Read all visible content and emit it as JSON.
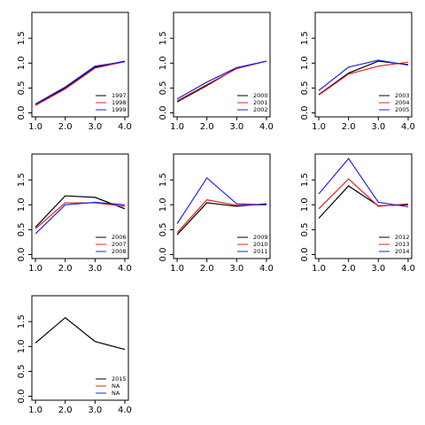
{
  "chart_data": [
    {
      "type": "line",
      "x": [
        1,
        2,
        3,
        4
      ],
      "xlim": [
        0.88,
        4.12
      ],
      "ylim": [
        -0.08,
        2.02
      ],
      "xticks": [
        {
          "value": 1,
          "label": "1.0"
        },
        {
          "value": 2,
          "label": "2.0"
        },
        {
          "value": 3,
          "label": "3.0"
        },
        {
          "value": 4,
          "label": "4.0"
        }
      ],
      "yticks": [
        {
          "value": 0,
          "label": "0.0"
        },
        0.5,
        {
          "value": 1,
          "label": "1.0"
        },
        1.5
      ],
      "legend": "bottomright",
      "series": [
        {
          "name": "1997",
          "color": "#000000",
          "values": [
            0.17,
            0.5,
            0.92,
            1.04
          ]
        },
        {
          "name": "1998",
          "color": "#df2020",
          "values": [
            0.15,
            0.48,
            0.9,
            1.03
          ]
        },
        {
          "name": "1999",
          "color": "#2020ee",
          "values": [
            0.18,
            0.52,
            0.94,
            1.03
          ]
        }
      ]
    },
    {
      "type": "line",
      "x": [
        1,
        2,
        3,
        4
      ],
      "xlim": [
        0.88,
        4.12
      ],
      "ylim": [
        -0.08,
        2.02
      ],
      "xticks": [
        {
          "value": 1,
          "label": "1.0"
        },
        {
          "value": 2,
          "label": "2.0"
        },
        {
          "value": 3,
          "label": "3.0"
        },
        {
          "value": 4,
          "label": "4.0"
        }
      ],
      "yticks": [
        {
          "value": 0,
          "label": "0.0"
        },
        0.5,
        {
          "value": 1,
          "label": "1.0"
        },
        1.5
      ],
      "legend": "bottomright",
      "series": [
        {
          "name": "2000",
          "color": "#000000",
          "values": [
            0.22,
            0.55,
            0.9,
            1.04
          ]
        },
        {
          "name": "2001",
          "color": "#df2020",
          "values": [
            0.24,
            0.57,
            0.89,
            1.04
          ]
        },
        {
          "name": "2002",
          "color": "#2020ee",
          "values": [
            0.28,
            0.62,
            0.91,
            1.04
          ]
        }
      ]
    },
    {
      "type": "line",
      "x": [
        1,
        2,
        3,
        4
      ],
      "xlim": [
        0.88,
        4.12
      ],
      "ylim": [
        -0.08,
        2.02
      ],
      "xticks": [
        {
          "value": 1,
          "label": "1.0"
        },
        {
          "value": 2,
          "label": "2.0"
        },
        {
          "value": 3,
          "label": "3.0"
        },
        {
          "value": 4,
          "label": "4.0"
        }
      ],
      "yticks": [
        {
          "value": 0,
          "label": "0.0"
        },
        0.5,
        {
          "value": 1,
          "label": "1.0"
        },
        1.5
      ],
      "legend": "bottomright",
      "series": [
        {
          "name": "2003",
          "color": "#000000",
          "values": [
            0.37,
            0.8,
            1.04,
            0.97
          ]
        },
        {
          "name": "2004",
          "color": "#df2020",
          "values": [
            0.36,
            0.78,
            0.94,
            1.02
          ]
        },
        {
          "name": "2005",
          "color": "#2020ee",
          "values": [
            0.45,
            0.92,
            1.06,
            0.96
          ]
        }
      ]
    },
    {
      "type": "line",
      "x": [
        1,
        2,
        3,
        4
      ],
      "xlim": [
        0.88,
        4.12
      ],
      "ylim": [
        -0.08,
        2.02
      ],
      "xticks": [
        {
          "value": 1,
          "label": "1.0"
        },
        {
          "value": 2,
          "label": "2.0"
        },
        {
          "value": 3,
          "label": "3.0"
        },
        {
          "value": 4,
          "label": "4.0"
        }
      ],
      "yticks": [
        {
          "value": 0,
          "label": "0.0"
        },
        0.5,
        {
          "value": 1,
          "label": "1.0"
        },
        1.5
      ],
      "legend": "bottomright",
      "series": [
        {
          "name": "2006",
          "color": "#000000",
          "values": [
            0.55,
            1.18,
            1.15,
            0.92
          ]
        },
        {
          "name": "2007",
          "color": "#df2020",
          "values": [
            0.52,
            1.04,
            1.04,
            0.97
          ]
        },
        {
          "name": "2008",
          "color": "#2020ee",
          "values": [
            0.42,
            1.0,
            1.05,
            1.0
          ]
        }
      ]
    },
    {
      "type": "line",
      "x": [
        1,
        2,
        3,
        4
      ],
      "xlim": [
        0.88,
        4.12
      ],
      "ylim": [
        -0.08,
        2.02
      ],
      "xticks": [
        {
          "value": 1,
          "label": "1.0"
        },
        {
          "value": 2,
          "label": "2.0"
        },
        {
          "value": 3,
          "label": "3.0"
        },
        {
          "value": 4,
          "label": "4.0"
        }
      ],
      "yticks": [
        {
          "value": 0,
          "label": "0.0"
        },
        0.5,
        {
          "value": 1,
          "label": "1.0"
        },
        1.5
      ],
      "legend": "bottomright",
      "series": [
        {
          "name": "2009",
          "color": "#000000",
          "values": [
            0.4,
            1.04,
            0.97,
            1.02
          ]
        },
        {
          "name": "2010",
          "color": "#df2020",
          "values": [
            0.44,
            1.1,
            0.99,
            1.0
          ]
        },
        {
          "name": "2011",
          "color": "#2020ee",
          "values": [
            0.62,
            1.54,
            1.02,
            1.0
          ]
        }
      ]
    },
    {
      "type": "line",
      "x": [
        1,
        2,
        3,
        4
      ],
      "xlim": [
        0.88,
        4.12
      ],
      "ylim": [
        -0.08,
        2.02
      ],
      "xticks": [
        {
          "value": 1,
          "label": "1.0"
        },
        {
          "value": 2,
          "label": "2.0"
        },
        {
          "value": 3,
          "label": "3.0"
        },
        {
          "value": 4,
          "label": "4.0"
        }
      ],
      "yticks": [
        {
          "value": 0,
          "label": "0.0"
        },
        0.5,
        {
          "value": 1,
          "label": "1.0"
        },
        1.5
      ],
      "legend": "bottomright",
      "series": [
        {
          "name": "2012",
          "color": "#000000",
          "values": [
            0.73,
            1.38,
            0.98,
            1.0
          ]
        },
        {
          "name": "2013",
          "color": "#df2020",
          "values": [
            0.92,
            1.52,
            0.97,
            1.02
          ]
        },
        {
          "name": "2014",
          "color": "#2020ee",
          "values": [
            1.22,
            1.93,
            1.05,
            0.96
          ]
        }
      ]
    },
    {
      "type": "line",
      "x": [
        1,
        2,
        3,
        4
      ],
      "xlim": [
        0.88,
        4.12
      ],
      "ylim": [
        -0.08,
        2.02
      ],
      "xticks": [
        {
          "value": 1,
          "label": "1.0"
        },
        {
          "value": 2,
          "label": "2.0"
        },
        {
          "value": 3,
          "label": "3.0"
        },
        {
          "value": 4,
          "label": "4.0"
        }
      ],
      "yticks": [
        {
          "value": 0,
          "label": "0.0"
        },
        0.5,
        {
          "value": 1,
          "label": "1.0"
        },
        1.5
      ],
      "legend": "bottomright",
      "series": [
        {
          "name": "2015",
          "color": "#000000",
          "values": [
            1.07,
            1.58,
            1.1,
            0.94
          ]
        },
        {
          "name": "NA",
          "color": "#df2020",
          "values": [
            null,
            null,
            null,
            null
          ]
        },
        {
          "name": "NA",
          "color": "#2020ee",
          "values": [
            null,
            null,
            null,
            null
          ]
        }
      ]
    }
  ]
}
